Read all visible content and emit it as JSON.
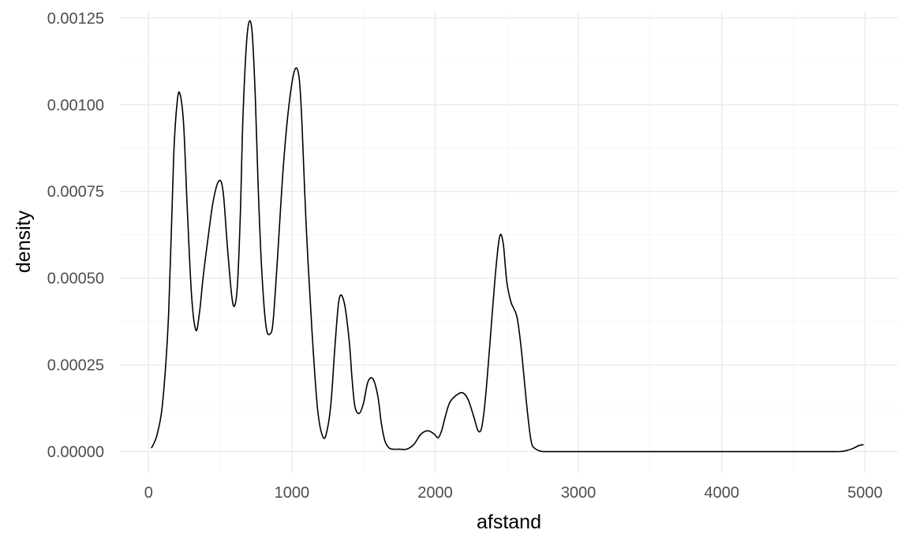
{
  "chart_data": {
    "type": "line",
    "xlabel": "afstand",
    "ylabel": "density",
    "xlim": [
      -200,
      5230
    ],
    "ylim": [
      -6e-05,
      0.00127
    ],
    "x_ticks": [
      0,
      1000,
      2000,
      3000,
      4000,
      5000
    ],
    "x_tick_labels": [
      "0",
      "1000",
      "2000",
      "3000",
      "4000",
      "5000"
    ],
    "y_ticks": [
      0,
      0.00025,
      0.0005,
      0.00075,
      0.001,
      0.00125
    ],
    "y_tick_labels": [
      "0.00000",
      "0.00025",
      "0.00050",
      "0.00075",
      "0.00100",
      "0.00125"
    ],
    "grid": true,
    "series": [
      {
        "color": "#000000",
        "x": [
          20,
          60,
          100,
          140,
          175,
          200,
          220,
          245,
          270,
          300,
          330,
          355,
          380,
          410,
          450,
          490,
          520,
          550,
          580,
          600,
          620,
          640,
          660,
          690,
          720,
          745,
          765,
          790,
          820,
          850,
          870,
          900,
          940,
          980,
          1020,
          1050,
          1070,
          1100,
          1140,
          1180,
          1220,
          1250,
          1275,
          1300,
          1330,
          1365,
          1400,
          1420,
          1440,
          1470,
          1500,
          1530,
          1565,
          1600,
          1625,
          1650,
          1680,
          1710,
          1750,
          1800,
          1850,
          1900,
          1950,
          1995,
          2020,
          2045,
          2070,
          2100,
          2140,
          2190,
          2230,
          2270,
          2300,
          2325,
          2350,
          2380,
          2420,
          2450,
          2475,
          2500,
          2530,
          2570,
          2600,
          2640,
          2670,
          2700,
          2750,
          2800,
          2900,
          3000,
          3500,
          4000,
          4500,
          4800,
          4870,
          4920,
          4960,
          4990
        ],
        "y": [
          1e-05,
          5e-05,
          0.00015,
          0.0004,
          0.00085,
          0.00101,
          0.00103,
          0.00094,
          0.0007,
          0.00045,
          0.00035,
          0.0004,
          0.0005,
          0.0006,
          0.00072,
          0.00078,
          0.00075,
          0.00059,
          0.00045,
          0.00042,
          0.00048,
          0.00068,
          0.00098,
          0.00121,
          0.00122,
          0.00102,
          0.00076,
          0.00052,
          0.00036,
          0.00034,
          0.00038,
          0.00056,
          0.00082,
          0.001,
          0.0011,
          0.00108,
          0.00095,
          0.00065,
          0.00035,
          0.00012,
          4e-05,
          7e-05,
          0.00015,
          0.0003,
          0.00044,
          0.00043,
          0.00032,
          0.00021,
          0.00013,
          0.00011,
          0.00014,
          0.0002,
          0.00021,
          0.00016,
          8e-05,
          3e-05,
          1e-05,
          7e-06,
          7e-06,
          7e-06,
          2e-05,
          5e-05,
          6e-05,
          5e-05,
          4e-05,
          6e-05,
          0.0001,
          0.00014,
          0.00016,
          0.00017,
          0.00015,
          0.0001,
          6e-05,
          7e-05,
          0.00015,
          0.0003,
          0.00051,
          0.00062,
          0.0006,
          0.00049,
          0.00043,
          0.00039,
          0.0003,
          0.00013,
          3e-05,
          8e-06,
          0,
          0,
          0,
          0,
          0,
          0,
          0,
          0,
          3e-06,
          1e-05,
          1.8e-05,
          2e-05
        ]
      }
    ]
  }
}
